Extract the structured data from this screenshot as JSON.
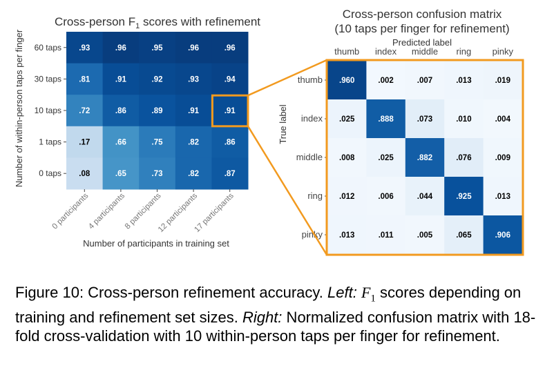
{
  "left_chart": {
    "title_pre": "Cross-person F",
    "title_sub": "1",
    "title_post": " scores with refinement",
    "xlabel": "Number of participants in training set",
    "ylabel": "Number of within-person taps per finger",
    "rows": [
      "60 taps",
      "30 taps",
      "10 taps",
      "1 taps",
      "0 taps"
    ],
    "cols": [
      "0 participants",
      "4 participants",
      "8 participants",
      "12 participants",
      "17 participants"
    ],
    "cells": [
      [
        ".93",
        ".96",
        ".95",
        ".96",
        ".96"
      ],
      [
        ".81",
        ".91",
        ".92",
        ".93",
        ".94"
      ],
      [
        ".72",
        ".86",
        ".89",
        ".91",
        ".91"
      ],
      [
        ".17",
        ".66",
        ".75",
        ".82",
        ".86"
      ],
      [
        ".08",
        ".65",
        ".73",
        ".82",
        ".87"
      ]
    ],
    "highlight_color": "#f29a1f"
  },
  "right_chart": {
    "title_line1": "Cross-person confusion matrix",
    "title_line2": "(10 taps per finger for refinement)",
    "xlabel": "Predicted label",
    "ylabel": "True label",
    "labels": [
      "thumb",
      "index",
      "middle",
      "ring",
      "pinky"
    ],
    "cells": [
      [
        ".960",
        ".002",
        ".007",
        ".013",
        ".019"
      ],
      [
        ".025",
        ".888",
        ".073",
        ".010",
        ".004"
      ],
      [
        ".008",
        ".025",
        ".882",
        ".076",
        ".009"
      ],
      [
        ".012",
        ".006",
        ".044",
        ".925",
        ".013"
      ],
      [
        ".013",
        ".011",
        ".005",
        ".065",
        ".906"
      ]
    ]
  },
  "caption": {
    "lead": "Figure 10: Cross-person refinement accuracy. ",
    "left_label": "Left:",
    "f_symbol": "F",
    "f_sub": "1",
    "part1": " scores depend­ing on training and refinement set sizes. ",
    "right_label": "Right:",
    "part2": " Normalized confusion matrix with 18-fold cross-validation with 10 within-person taps per finger for refinement."
  },
  "chart_data": [
    {
      "type": "heatmap",
      "title": "Cross-person F1 scores with refinement",
      "xlabel": "Number of participants in training set",
      "ylabel": "Number of within-person taps per finger",
      "x": [
        "0 participants",
        "4 participants",
        "8 participants",
        "12 participants",
        "17 participants"
      ],
      "y": [
        "60 taps",
        "30 taps",
        "10 taps",
        "1 taps",
        "0 taps"
      ],
      "values": [
        [
          0.93,
          0.96,
          0.95,
          0.96,
          0.96
        ],
        [
          0.81,
          0.91,
          0.92,
          0.93,
          0.94
        ],
        [
          0.72,
          0.86,
          0.89,
          0.91,
          0.91
        ],
        [
          0.17,
          0.66,
          0.75,
          0.82,
          0.86
        ],
        [
          0.08,
          0.65,
          0.73,
          0.82,
          0.87
        ]
      ],
      "highlight": {
        "row": "10 taps",
        "col": "17 participants"
      }
    },
    {
      "type": "heatmap",
      "title": "Cross-person confusion matrix (10 taps per finger for refinement)",
      "xlabel": "Predicted label",
      "ylabel": "True label",
      "x": [
        "thumb",
        "index",
        "middle",
        "ring",
        "pinky"
      ],
      "y": [
        "thumb",
        "index",
        "middle",
        "ring",
        "pinky"
      ],
      "values": [
        [
          0.96,
          0.002,
          0.007,
          0.013,
          0.019
        ],
        [
          0.025,
          0.888,
          0.073,
          0.01,
          0.004
        ],
        [
          0.008,
          0.025,
          0.882,
          0.076,
          0.009
        ],
        [
          0.012,
          0.006,
          0.044,
          0.925,
          0.013
        ],
        [
          0.013,
          0.011,
          0.005,
          0.065,
          0.906
        ]
      ]
    }
  ]
}
